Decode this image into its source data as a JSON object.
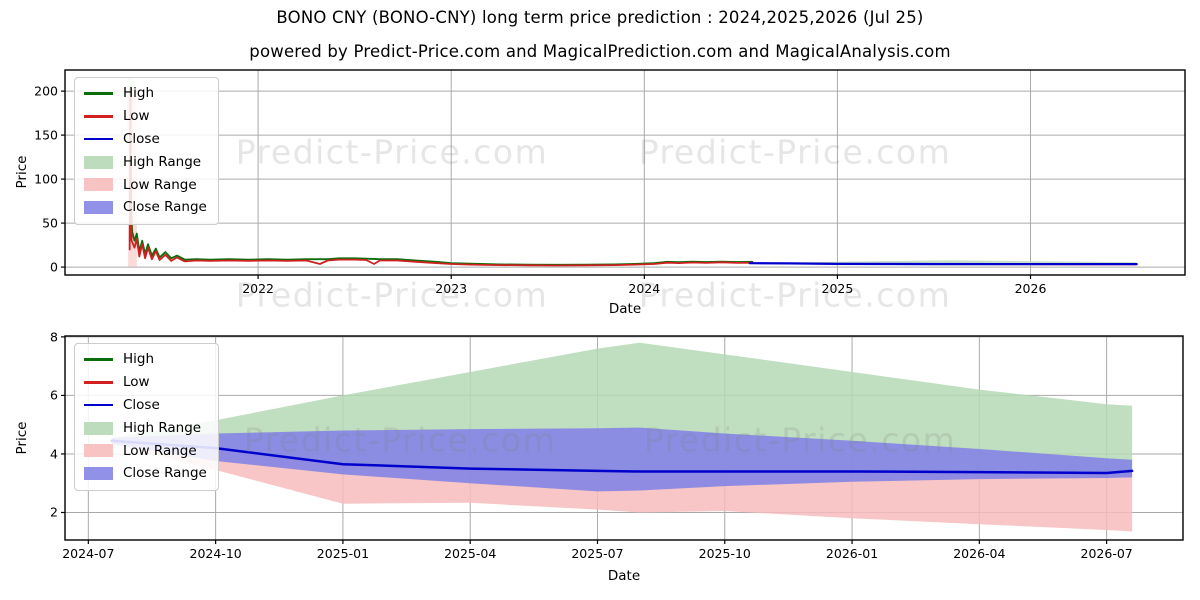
{
  "title": "BONO CNY (BONO-CNY) long term price prediction : 2024,2025,2026 (Jul 25)",
  "subtitle": "powered by Predict-Price.com and MagicalPrediction.com and MagicalAnalysis.com",
  "watermark": {
    "text": "Predict-Price.com"
  },
  "colors": {
    "high": "#0b6e0b",
    "low": "#d02020",
    "close": "#0000cd",
    "high_range": "#b5d8b5",
    "low_range": "#f7bcbc",
    "close_range": "#8585e4",
    "grid": "#aaaaaa",
    "spine": "#000000"
  },
  "legend": {
    "items": [
      {
        "label": "High",
        "swatch": "line",
        "color_key": "high"
      },
      {
        "label": "Low",
        "swatch": "line",
        "color_key": "low"
      },
      {
        "label": "Close",
        "swatch": "line",
        "color_key": "close"
      },
      {
        "label": "High Range",
        "swatch": "patch",
        "color_key": "high_range"
      },
      {
        "label": "Low Range",
        "swatch": "patch",
        "color_key": "low_range"
      },
      {
        "label": "Close Range",
        "swatch": "patch",
        "color_key": "close_range"
      }
    ]
  },
  "chart_data": [
    {
      "type": "line",
      "name": "historical price with long-term prediction overlay",
      "xlabel": "Date",
      "ylabel": "Price",
      "x_range": [
        2021.0,
        2026.8
      ],
      "y_range": [
        -9,
        224
      ],
      "x_ticks": {
        "values": [
          2022,
          2023,
          2024,
          2025,
          2026
        ],
        "labels": [
          "2022",
          "2023",
          "2024",
          "2025",
          "2026"
        ]
      },
      "y_ticks": {
        "values": [
          0,
          50,
          100,
          150,
          200
        ],
        "labels": [
          "0",
          "50",
          "100",
          "150",
          "200"
        ]
      },
      "series": [
        {
          "name": "High",
          "color_key": "high",
          "points": [
            [
              2021.338,
              205
            ],
            [
              2021.342,
              70
            ],
            [
              2021.348,
              40
            ],
            [
              2021.36,
              30
            ],
            [
              2021.372,
              38
            ],
            [
              2021.385,
              18
            ],
            [
              2021.4,
              30
            ],
            [
              2021.415,
              15
            ],
            [
              2021.43,
              26
            ],
            [
              2021.45,
              13
            ],
            [
              2021.47,
              21
            ],
            [
              2021.49,
              11
            ],
            [
              2021.52,
              17
            ],
            [
              2021.55,
              10
            ],
            [
              2021.58,
              13
            ],
            [
              2021.62,
              8.5
            ],
            [
              2021.68,
              9
            ],
            [
              2021.75,
              8.5
            ],
            [
              2021.85,
              9
            ],
            [
              2021.95,
              8.5
            ],
            [
              2022.05,
              9
            ],
            [
              2022.15,
              8.5
            ],
            [
              2022.25,
              9
            ],
            [
              2022.36,
              9
            ],
            [
              2022.42,
              10
            ],
            [
              2022.5,
              10
            ],
            [
              2022.56,
              9.5
            ],
            [
              2022.63,
              9
            ],
            [
              2022.72,
              9
            ],
            [
              2022.82,
              7.5
            ],
            [
              2022.92,
              6
            ],
            [
              2023.0,
              4.5
            ],
            [
              2023.1,
              3.8
            ],
            [
              2023.25,
              3
            ],
            [
              2023.4,
              2.8
            ],
            [
              2023.55,
              2.6
            ],
            [
              2023.7,
              2.8
            ],
            [
              2023.85,
              3
            ],
            [
              2023.95,
              3.6
            ],
            [
              2024.05,
              4.5
            ],
            [
              2024.12,
              6
            ],
            [
              2024.18,
              5.5
            ],
            [
              2024.25,
              6.2
            ],
            [
              2024.32,
              5.8
            ],
            [
              2024.4,
              6.2
            ],
            [
              2024.48,
              5.8
            ],
            [
              2024.56,
              6
            ]
          ]
        },
        {
          "name": "Low",
          "color_key": "low",
          "points": [
            [
              2021.335,
              20
            ],
            [
              2021.338,
              195
            ],
            [
              2021.342,
              60
            ],
            [
              2021.345,
              30
            ],
            [
              2021.36,
              22
            ],
            [
              2021.372,
              32
            ],
            [
              2021.385,
              12
            ],
            [
              2021.4,
              26
            ],
            [
              2021.415,
              10
            ],
            [
              2021.43,
              22
            ],
            [
              2021.45,
              9
            ],
            [
              2021.47,
              18
            ],
            [
              2021.49,
              8
            ],
            [
              2021.52,
              14
            ],
            [
              2021.55,
              7
            ],
            [
              2021.58,
              11
            ],
            [
              2021.62,
              6.5
            ],
            [
              2021.68,
              7.5
            ],
            [
              2021.75,
              7
            ],
            [
              2021.85,
              7.5
            ],
            [
              2021.95,
              7
            ],
            [
              2022.05,
              7.5
            ],
            [
              2022.15,
              7
            ],
            [
              2022.25,
              7.5
            ],
            [
              2022.32,
              3.5
            ],
            [
              2022.36,
              7.5
            ],
            [
              2022.42,
              8.5
            ],
            [
              2022.5,
              8.5
            ],
            [
              2022.56,
              8
            ],
            [
              2022.6,
              3.5
            ],
            [
              2022.63,
              7.5
            ],
            [
              2022.72,
              7.5
            ],
            [
              2022.82,
              6
            ],
            [
              2022.92,
              4.5
            ],
            [
              2023.0,
              3.5
            ],
            [
              2023.1,
              2.8
            ],
            [
              2023.25,
              2.2
            ],
            [
              2023.4,
              2
            ],
            [
              2023.55,
              1.8
            ],
            [
              2023.7,
              2
            ],
            [
              2023.85,
              2.2
            ],
            [
              2023.95,
              2.8
            ],
            [
              2024.05,
              3.5
            ],
            [
              2024.12,
              5
            ],
            [
              2024.18,
              4.5
            ],
            [
              2024.25,
              5.2
            ],
            [
              2024.32,
              4.8
            ],
            [
              2024.4,
              5.4
            ],
            [
              2024.48,
              4.8
            ],
            [
              2024.56,
              5
            ]
          ]
        }
      ],
      "spike_stripes": [
        {
          "color_key": "high_range",
          "x": [
            2021.322,
            2021.355
          ],
          "y": [
            150,
            215
          ]
        },
        {
          "color_key": "low_range",
          "x": [
            2021.327,
            2021.372
          ],
          "y": [
            0.5,
            203
          ]
        }
      ],
      "prediction_start_year": 2024.5
    },
    {
      "type": "area",
      "name": "2024-2026 price prediction bands",
      "xlabel": "Date",
      "ylabel": "Price",
      "x_unit": "months since 2024-07",
      "x_range": [
        -0.55,
        25.8
      ],
      "y_range": [
        1.06,
        8.03
      ],
      "x_ticks": {
        "values": [
          0,
          3,
          6,
          9,
          12,
          15,
          18,
          21,
          24
        ],
        "labels": [
          "2024-07",
          "2024-10",
          "2025-01",
          "2025-04",
          "2025-07",
          "2025-10",
          "2026-01",
          "2026-04",
          "2026-07"
        ]
      },
      "y_ticks": {
        "values": [
          2,
          4,
          6,
          8
        ],
        "labels": [
          "2",
          "4",
          "6",
          "8"
        ]
      },
      "x": [
        0.55,
        3,
        6,
        9,
        12,
        13,
        15,
        18,
        21,
        24,
        24.6
      ],
      "series": [
        {
          "name": "High Range top",
          "values": [
            4.55,
            5.15,
            6.0,
            6.8,
            7.6,
            7.8,
            7.4,
            6.8,
            6.2,
            5.7,
            5.65
          ]
        },
        {
          "name": "Close Range top",
          "values": [
            4.55,
            4.7,
            4.8,
            4.85,
            4.88,
            4.9,
            4.7,
            4.45,
            4.17,
            3.85,
            3.8
          ]
        },
        {
          "name": "Close",
          "values": [
            4.45,
            4.2,
            3.65,
            3.5,
            3.42,
            3.4,
            3.4,
            3.4,
            3.38,
            3.35,
            3.42
          ]
        },
        {
          "name": "Close Range bottom",
          "values": [
            4.35,
            3.76,
            3.3,
            3.0,
            2.72,
            2.75,
            2.9,
            3.05,
            3.14,
            3.18,
            3.2
          ]
        },
        {
          "name": "Low Range bottom",
          "values": [
            4.35,
            3.45,
            2.3,
            2.33,
            2.1,
            2.0,
            2.05,
            1.8,
            1.6,
            1.4,
            1.35
          ]
        }
      ]
    }
  ]
}
